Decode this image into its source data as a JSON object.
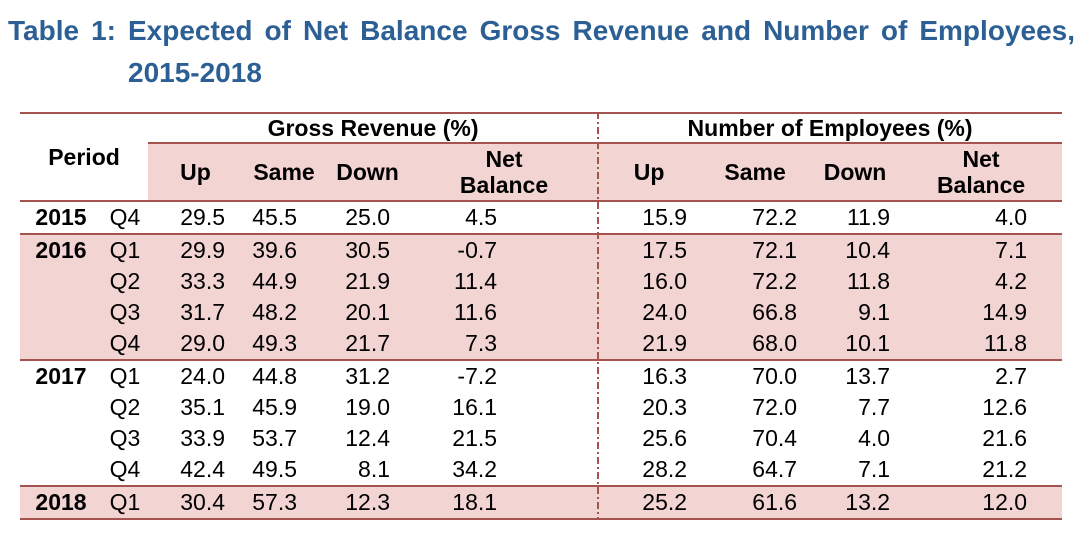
{
  "title": {
    "line1": "Table 1: Expected of Net Balance Gross Revenue and Number of Employees,",
    "line2": "2015-2018"
  },
  "table": {
    "period_header": "Period",
    "sections": [
      {
        "title": "Gross Revenue (%)",
        "columns": [
          "Up",
          "Same",
          "Down",
          "Net Balance"
        ]
      },
      {
        "title": "Number of Employees (%)",
        "columns": [
          "Up",
          "Same",
          "Down",
          "Net Balance"
        ]
      }
    ],
    "rows": [
      {
        "year": "2015",
        "quarter": "Q4",
        "gross_revenue": [
          "29.5",
          "45.5",
          "25.0",
          "4.5"
        ],
        "employees": [
          "15.9",
          "72.2",
          "11.9",
          "4.0"
        ]
      },
      {
        "year": "2016",
        "quarter": "Q1",
        "gross_revenue": [
          "29.9",
          "39.6",
          "30.5",
          "-0.7"
        ],
        "employees": [
          "17.5",
          "72.1",
          "10.4",
          "7.1"
        ]
      },
      {
        "year": "",
        "quarter": "Q2",
        "gross_revenue": [
          "33.3",
          "44.9",
          "21.9",
          "11.4"
        ],
        "employees": [
          "16.0",
          "72.2",
          "11.8",
          "4.2"
        ]
      },
      {
        "year": "",
        "quarter": "Q3",
        "gross_revenue": [
          "31.7",
          "48.2",
          "20.1",
          "11.6"
        ],
        "employees": [
          "24.0",
          "66.8",
          "9.1",
          "14.9"
        ]
      },
      {
        "year": "",
        "quarter": "Q4",
        "gross_revenue": [
          "29.0",
          "49.3",
          "21.7",
          "7.3"
        ],
        "employees": [
          "21.9",
          "68.0",
          "10.1",
          "11.8"
        ]
      },
      {
        "year": "2017",
        "quarter": "Q1",
        "gross_revenue": [
          "24.0",
          "44.8",
          "31.2",
          "-7.2"
        ],
        "employees": [
          "16.3",
          "70.0",
          "13.7",
          "2.7"
        ]
      },
      {
        "year": "",
        "quarter": "Q2",
        "gross_revenue": [
          "35.1",
          "45.9",
          "19.0",
          "16.1"
        ],
        "employees": [
          "20.3",
          "72.0",
          "7.7",
          "12.6"
        ]
      },
      {
        "year": "",
        "quarter": "Q3",
        "gross_revenue": [
          "33.9",
          "53.7",
          "12.4",
          "21.5"
        ],
        "employees": [
          "25.6",
          "70.4",
          "4.0",
          "21.6"
        ]
      },
      {
        "year": "",
        "quarter": "Q4",
        "gross_revenue": [
          "42.4",
          "49.5",
          "8.1",
          "34.2"
        ],
        "employees": [
          "28.2",
          "64.7",
          "7.1",
          "21.2"
        ]
      },
      {
        "year": "2018",
        "quarter": "Q1",
        "gross_revenue": [
          "30.4",
          "57.3",
          "12.3",
          "18.1"
        ],
        "employees": [
          "25.2",
          "61.6",
          "13.2",
          "12.0"
        ]
      }
    ],
    "colors": {
      "shaded_row": "#f2d4d3",
      "border": "#a5534f",
      "title_text": "#2c5f94"
    }
  }
}
